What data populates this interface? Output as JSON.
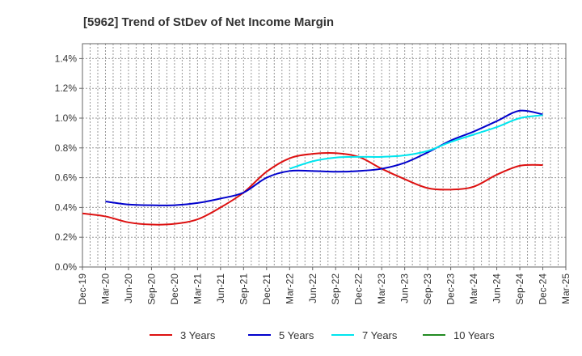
{
  "chart_data": {
    "type": "line",
    "title": "[5962]  Trend of StDev of Net Income Margin",
    "xlabel": "",
    "ylabel": "",
    "x": [
      "Dec-19",
      "Mar-20",
      "Jun-20",
      "Sep-20",
      "Dec-20",
      "Mar-21",
      "Jun-21",
      "Sep-21",
      "Dec-21",
      "Mar-22",
      "Jun-22",
      "Sep-22",
      "Dec-22",
      "Mar-23",
      "Jun-23",
      "Sep-23",
      "Dec-23",
      "Mar-24",
      "Jun-24",
      "Sep-24",
      "Dec-24",
      "Mar-25"
    ],
    "ylim": [
      0,
      1.5
    ],
    "yticks": [
      0.0,
      0.2,
      0.4,
      0.6,
      0.8,
      1.0,
      1.2,
      1.4
    ],
    "ytick_labels": [
      "0.0%",
      "0.2%",
      "0.4%",
      "0.6%",
      "0.8%",
      "1.0%",
      "1.2%",
      "1.4%"
    ],
    "grid": true,
    "legend_position": "bottom",
    "series": [
      {
        "name": "3 Years",
        "color": "#dd1111",
        "values": [
          0.36,
          0.34,
          0.3,
          0.285,
          0.29,
          0.32,
          0.4,
          0.5,
          0.64,
          0.73,
          0.76,
          0.765,
          0.74,
          0.66,
          0.59,
          0.53,
          0.52,
          0.54,
          0.62,
          0.68,
          0.685,
          null
        ]
      },
      {
        "name": "5 Years",
        "color": "#0000cc",
        "values": [
          null,
          0.44,
          0.42,
          0.415,
          0.415,
          0.43,
          0.46,
          0.5,
          0.6,
          0.645,
          0.645,
          0.64,
          0.645,
          0.66,
          0.7,
          0.77,
          0.85,
          0.91,
          0.98,
          1.05,
          1.025,
          null
        ]
      },
      {
        "name": "7 Years",
        "color": "#00e5ee",
        "values": [
          null,
          null,
          null,
          null,
          null,
          null,
          null,
          null,
          null,
          0.66,
          0.71,
          0.735,
          0.74,
          0.74,
          0.75,
          0.78,
          0.84,
          0.89,
          0.94,
          1.0,
          1.02,
          null
        ]
      },
      {
        "name": "10 Years",
        "color": "#228b22",
        "values": [
          null,
          null,
          null,
          null,
          null,
          null,
          null,
          null,
          null,
          null,
          null,
          null,
          null,
          null,
          null,
          null,
          null,
          null,
          null,
          null,
          null,
          null
        ]
      }
    ]
  }
}
